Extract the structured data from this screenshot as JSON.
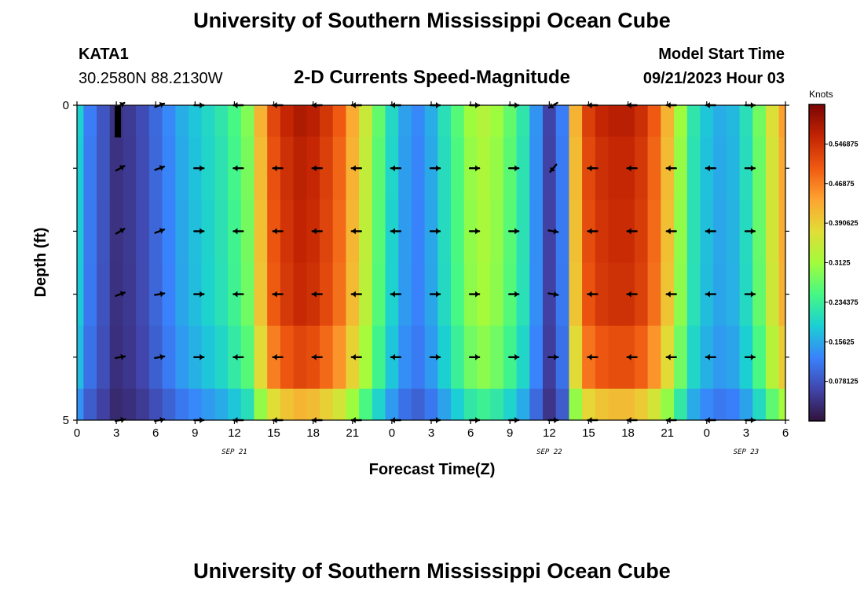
{
  "page": {
    "title": "University of Southern Mississippi Ocean Cube",
    "title_bottom": "University of Southern Mississippi Ocean Cube"
  },
  "station": {
    "id": "KATA1",
    "coords": "30.2580N  88.2130W"
  },
  "model": {
    "label": "Model Start Time",
    "time": "09/21/2023 Hour 03"
  },
  "chart_data": {
    "type": "heatmap",
    "subtitle": "2-D Currents Speed-Magnitude",
    "xlabel": "Forecast Time(Z)",
    "ylabel": "Depth (ft)",
    "x_tick_labels": [
      "0",
      "3",
      "6",
      "9",
      "12",
      "15",
      "18",
      "21",
      "0",
      "3",
      "6",
      "9",
      "12",
      "15",
      "18",
      "21",
      "0",
      "3",
      "6"
    ],
    "y_tick_labels": [
      "0",
      "5"
    ],
    "ylim": [
      0,
      5
    ],
    "date_labels": [
      {
        "text": "SEP 21",
        "hour": 12
      },
      {
        "text": "SEP 22",
        "hour": 36
      },
      {
        "text": "SEP 23",
        "hour": 51
      }
    ],
    "colorbar": {
      "unit": "Knots",
      "range": [
        0,
        0.625
      ],
      "tick_labels": [
        "0.078125",
        "0.15625",
        "0.234375",
        "0.3125",
        "0.390625",
        "0.46875",
        "0.546875"
      ],
      "tick_values": [
        0.078125,
        0.15625,
        0.234375,
        0.3125,
        0.390625,
        0.46875,
        0.546875
      ]
    },
    "hours": [
      0,
      1,
      2,
      3,
      4,
      5,
      6,
      7,
      8,
      9,
      10,
      11,
      12,
      13,
      14,
      15,
      16,
      17,
      18,
      19,
      20,
      21,
      22,
      23,
      24,
      25,
      26,
      27,
      28,
      29,
      30,
      31,
      32,
      33,
      34,
      35,
      36,
      37,
      38,
      39,
      40,
      41,
      42,
      43,
      44,
      45,
      46,
      47,
      48,
      49,
      50,
      51,
      52,
      53,
      54
    ],
    "depth_rows": [
      "0.0-0.5",
      "0.5-1.5",
      "1.5-2.5",
      "2.5-3.5",
      "3.5-4.5",
      "4.5-5.0"
    ],
    "speed_profile": [
      0.19,
      0.12,
      0.08,
      0.04,
      0.05,
      0.07,
      0.1,
      0.13,
      0.16,
      0.18,
      0.2,
      0.22,
      0.25,
      0.29,
      0.42,
      0.52,
      0.56,
      0.58,
      0.57,
      0.54,
      0.5,
      0.43,
      0.35,
      0.27,
      0.2,
      0.15,
      0.13,
      0.16,
      0.21,
      0.26,
      0.31,
      0.33,
      0.31,
      0.27,
      0.22,
      0.14,
      0.06,
      0.12,
      0.42,
      0.53,
      0.56,
      0.57,
      0.57,
      0.55,
      0.5,
      0.42,
      0.31,
      0.22,
      0.18,
      0.16,
      0.17,
      0.21,
      0.28,
      0.37,
      0.44
    ],
    "depth_factor": [
      1.0,
      0.98,
      0.97,
      0.96,
      0.9,
      0.72
    ],
    "vectors": {
      "hours": [
        3,
        6,
        9,
        12,
        15,
        18,
        21,
        24,
        27,
        30,
        33,
        36,
        39,
        42,
        45,
        48,
        51
      ],
      "depths": [
        0,
        1,
        2,
        3,
        4,
        5
      ],
      "directions_deg": [
        [
          60,
          70,
          90,
          270,
          270,
          270,
          270,
          270,
          90,
          90,
          90,
          240,
          270,
          270,
          270,
          270,
          90
        ],
        [
          60,
          70,
          90,
          270,
          270,
          270,
          270,
          270,
          90,
          90,
          90,
          220,
          270,
          270,
          270,
          270,
          90
        ],
        [
          60,
          70,
          90,
          270,
          270,
          270,
          270,
          270,
          90,
          90,
          90,
          100,
          270,
          270,
          270,
          270,
          90
        ],
        [
          70,
          80,
          90,
          270,
          270,
          270,
          270,
          270,
          90,
          90,
          90,
          100,
          270,
          270,
          270,
          270,
          90
        ],
        [
          80,
          80,
          90,
          270,
          270,
          270,
          270,
          270,
          90,
          90,
          90,
          90,
          270,
          270,
          270,
          270,
          90
        ],
        [
          80,
          80,
          90,
          270,
          270,
          270,
          270,
          270,
          90,
          90,
          90,
          90,
          270,
          270,
          270,
          270,
          90
        ]
      ]
    }
  }
}
